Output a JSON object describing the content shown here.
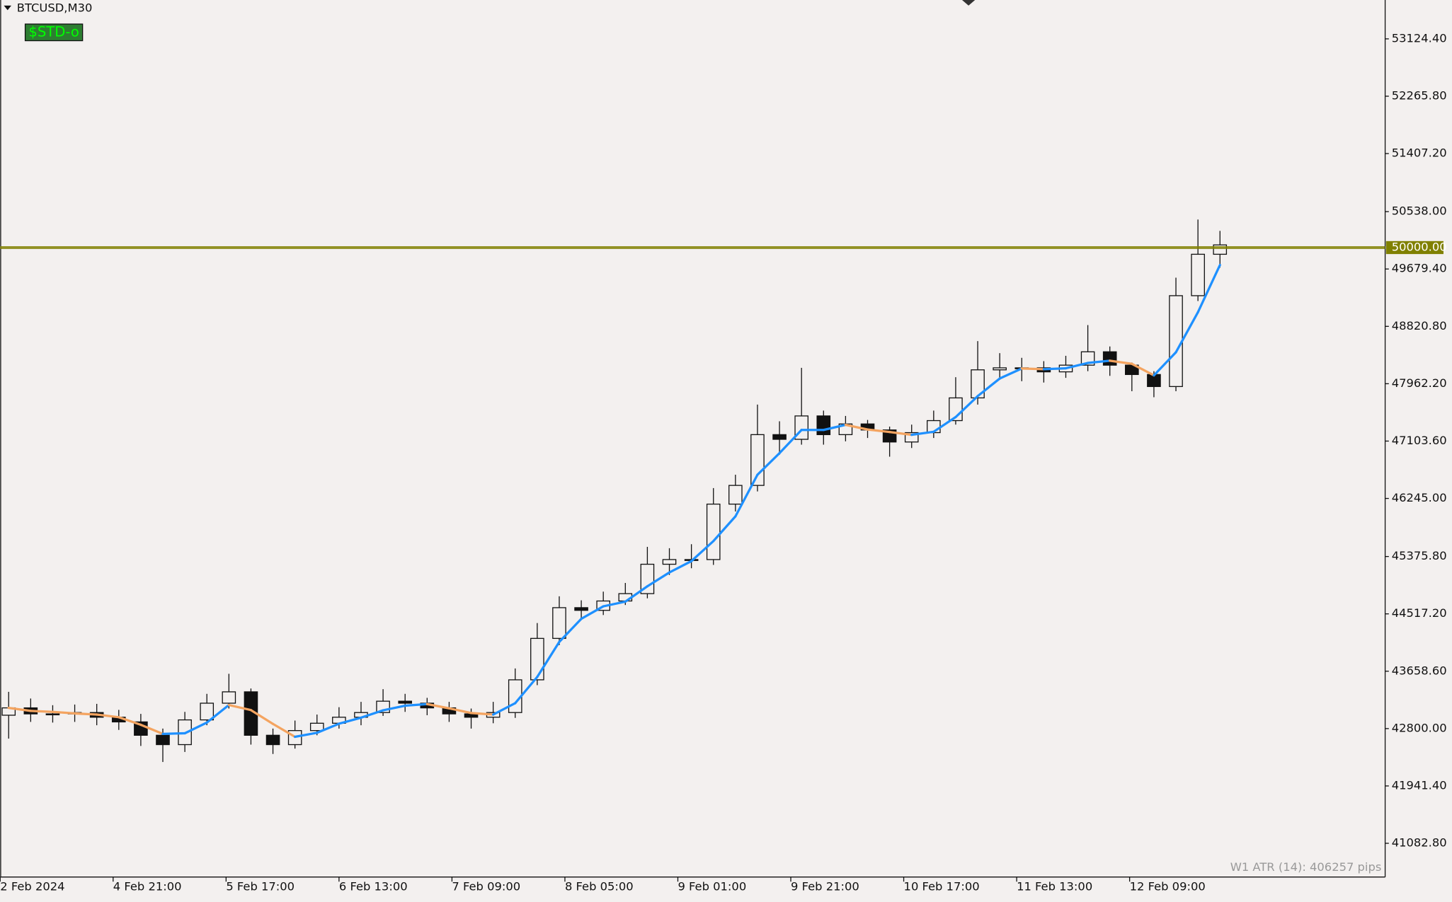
{
  "chart_data": {
    "type": "candlestick",
    "title": "BTCUSD,M30",
    "button_label": "$STD-o",
    "annotation": "W1 ATR (14): 406257 pips",
    "xlim": [
      0,
      490.5
    ],
    "xticks": [
      {
        "value": 0,
        "label": "2 Feb 2024"
      },
      {
        "value": 40,
        "label": "4 Feb 21:00"
      },
      {
        "value": 80,
        "label": "5 Feb 17:00"
      },
      {
        "value": 120,
        "label": "6 Feb 13:00"
      },
      {
        "value": 160,
        "label": "7 Feb 09:00"
      },
      {
        "value": 200,
        "label": "8 Feb 05:00"
      },
      {
        "value": 240,
        "label": "9 Feb 01:00"
      },
      {
        "value": 280,
        "label": "9 Feb 21:00"
      },
      {
        "value": 320,
        "label": "10 Feb 17:00"
      },
      {
        "value": 360,
        "label": "11 Feb 13:00"
      },
      {
        "value": 400,
        "label": "12 Feb 09:00"
      }
    ],
    "ylim": [
      40578,
      53706
    ],
    "yticks": [
      {
        "value": 53124.4,
        "label": "53124.40"
      },
      {
        "value": 52265.8,
        "label": "52265.80"
      },
      {
        "value": 51407.2,
        "label": "51407.20"
      },
      {
        "value": 50538,
        "label": "50538.00"
      },
      {
        "value": 49679.4,
        "label": "49679.40"
      },
      {
        "value": 48820.8,
        "label": "48820.80"
      },
      {
        "value": 47962.2,
        "label": "47962.20"
      },
      {
        "value": 47103.6,
        "label": "47103.60"
      },
      {
        "value": 46245,
        "label": "46245.00"
      },
      {
        "value": 45375.8,
        "label": "45375.80"
      },
      {
        "value": 44517.2,
        "label": "44517.20"
      },
      {
        "value": 43658.6,
        "label": "43658.60"
      },
      {
        "value": 42800,
        "label": "42800.00"
      },
      {
        "value": 41941.4,
        "label": "41941.40"
      },
      {
        "value": 41082.8,
        "label": "41082.80"
      }
    ],
    "level": {
      "value": 50000,
      "label": "50000.00",
      "color": "#808000"
    },
    "colors": {
      "up_body": "#f3f0ef",
      "down_body": "#111111",
      "outline": "#111111",
      "ma_up": "#1e90ff",
      "ma_down": "#f4a460",
      "button": "#2e7d32",
      "button_text": "#00ff00"
    },
    "x": [
      3,
      10.8,
      18.6,
      26.4,
      34.2,
      42,
      49.8,
      57.6,
      65.4,
      73.2,
      81,
      88.8,
      96.6,
      104.4,
      112.2,
      120,
      127.8,
      135.6,
      143.4,
      151.2,
      159,
      166.8,
      174.6,
      182.4,
      190.2,
      198,
      205.8,
      213.6,
      221.4,
      229.2,
      237,
      244.8,
      252.6,
      260.4,
      268.2,
      276,
      283.8,
      291.6,
      299.4,
      307.2,
      315,
      322.8,
      330.6,
      338.4,
      346.2,
      354,
      361.8,
      369.6,
      377.4,
      385.2,
      393,
      400.8,
      408.6,
      416.4,
      424.2,
      432
    ],
    "open": [
      43000,
      43110,
      43020,
      43020,
      43040,
      42970,
      42900,
      42700,
      42560,
      42930,
      43180,
      43350,
      42700,
      42560,
      42770,
      42880,
      42970,
      43040,
      43210,
      43180,
      43110,
      43020,
      42970,
      43040,
      43530,
      44150,
      44610,
      44570,
      44710,
      44820,
      45260,
      45330,
      45330,
      46160,
      46440,
      47200,
      47130,
      47480,
      47200,
      47360,
      47270,
      47090,
      47230,
      47410,
      47750,
      48170,
      48200,
      48200,
      48140,
      48240,
      48440,
      48240,
      48100,
      47920,
      49280,
      49900
    ],
    "high": [
      43350,
      43250,
      43150,
      43160,
      43170,
      43080,
      43020,
      42800,
      43050,
      43320,
      43620,
      43400,
      42800,
      42920,
      43010,
      43120,
      43200,
      43390,
      43320,
      43260,
      43200,
      43100,
      43200,
      43700,
      44380,
      44780,
      44720,
      44850,
      44980,
      45520,
      45500,
      45560,
      46400,
      46600,
      47650,
      47400,
      48200,
      47560,
      47480,
      47420,
      47320,
      47350,
      47560,
      48060,
      48600,
      48420,
      48350,
      48300,
      48380,
      48840,
      48520,
      48280,
      48150,
      49550,
      50420,
      50250
    ],
    "low": [
      42650,
      42900,
      42890,
      42900,
      42850,
      42780,
      42540,
      42300,
      42450,
      42850,
      43100,
      42560,
      42420,
      42500,
      42700,
      42800,
      42850,
      42990,
      43050,
      43000,
      42900,
      42800,
      42880,
      42960,
      43450,
      44050,
      44450,
      44500,
      44650,
      44750,
      45100,
      45200,
      45250,
      46050,
      46350,
      46900,
      47050,
      47050,
      47100,
      47150,
      46870,
      47000,
      47150,
      47350,
      47650,
      48020,
      48000,
      47980,
      48050,
      48150,
      48080,
      47850,
      47760,
      47850,
      49200,
      49700
    ],
    "close": [
      43110,
      43020,
      43020,
      43040,
      42970,
      42900,
      42700,
      42560,
      42930,
      43180,
      43350,
      42700,
      42560,
      42770,
      42880,
      42970,
      43040,
      43210,
      43180,
      43110,
      43020,
      42970,
      43040,
      43530,
      44150,
      44610,
      44570,
      44710,
      44820,
      45260,
      45330,
      45330,
      46160,
      46440,
      47200,
      47130,
      47480,
      47200,
      47360,
      47270,
      47090,
      47230,
      47410,
      47750,
      48170,
      48200,
      48200,
      48140,
      48240,
      48440,
      48240,
      48100,
      47920,
      49280,
      49900,
      50040
    ],
    "ma": [
      43110,
      43065,
      43050,
      43027,
      43010,
      42970,
      42857,
      42720,
      42730,
      42890,
      43153,
      43077,
      42870,
      42677,
      42737,
      42873,
      42963,
      43073,
      43143,
      43167,
      43103,
      43033,
      43010,
      43180,
      43573,
      44097,
      44443,
      44630,
      44700,
      44930,
      45137,
      45307,
      45607,
      45977,
      46600,
      46923,
      47270,
      47270,
      47347,
      47277,
      47240,
      47197,
      47243,
      47463,
      47777,
      48040,
      48190,
      48180,
      48193,
      48273,
      48307,
      48260,
      48087,
      48433,
      49033,
      49740
    ]
  }
}
